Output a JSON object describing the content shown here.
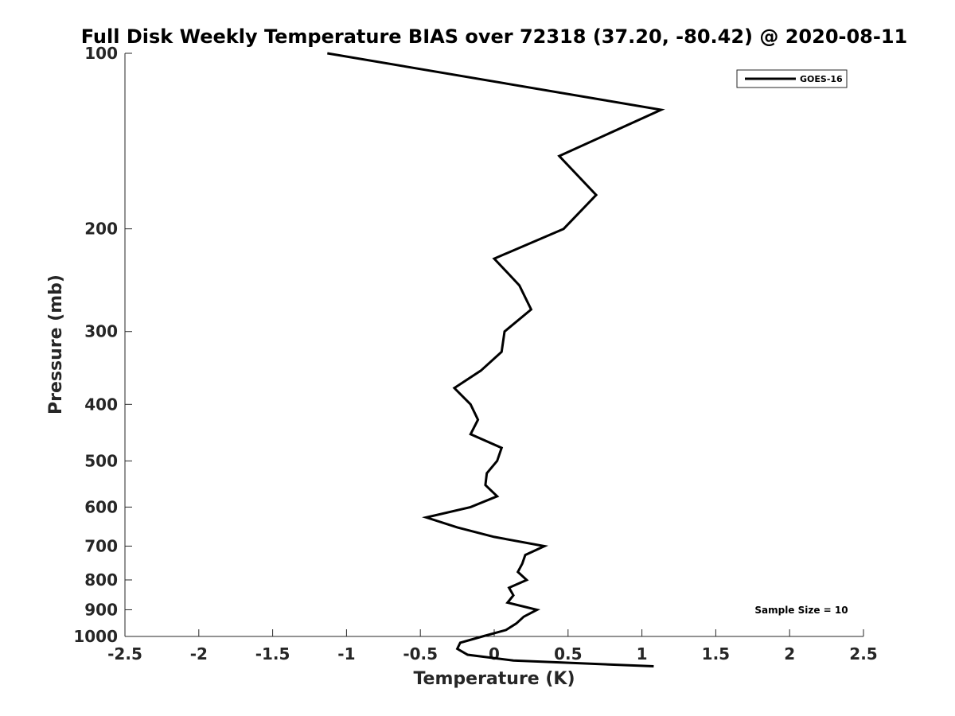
{
  "chart_data": {
    "type": "line",
    "title": "Full Disk Weekly Temperature BIAS over 72318 (37.20, -80.42) @ 2020-08-11",
    "xlabel": "Temperature (K)",
    "ylabel": "Pressure (mb)",
    "xlim": [
      -2.5,
      2.5
    ],
    "ylim": [
      100,
      1000
    ],
    "y_scale": "log",
    "y_reversed": true,
    "grid": false,
    "legend_position": "top-right",
    "x_ticks": [
      -2.5,
      -2,
      -1.5,
      -1,
      -0.5,
      0,
      0.5,
      1,
      1.5,
      2,
      2.5
    ],
    "x_tick_labels": [
      "-2.5",
      "-2",
      "-1.5",
      "-1",
      "-0.5",
      "0",
      "0.5",
      "1",
      "1.5",
      "2",
      "2.5"
    ],
    "y_ticks": [
      100,
      200,
      300,
      400,
      500,
      600,
      700,
      800,
      900,
      1000
    ],
    "y_tick_labels": [
      "100",
      "200",
      "300",
      "400",
      "500",
      "600",
      "700",
      "800",
      "900",
      "1000"
    ],
    "series": [
      {
        "name": "GOES-16",
        "color": "#000000",
        "points": [
          {
            "x": -1.13,
            "p": 100
          },
          {
            "x": 1.13,
            "p": 125
          },
          {
            "x": 0.44,
            "p": 150
          },
          {
            "x": 0.69,
            "p": 175
          },
          {
            "x": 0.47,
            "p": 200
          },
          {
            "x": 0.0,
            "p": 225
          },
          {
            "x": 0.17,
            "p": 250
          },
          {
            "x": 0.25,
            "p": 275
          },
          {
            "x": 0.07,
            "p": 300
          },
          {
            "x": 0.05,
            "p": 325
          },
          {
            "x": -0.09,
            "p": 350
          },
          {
            "x": -0.27,
            "p": 375
          },
          {
            "x": -0.16,
            "p": 400
          },
          {
            "x": -0.11,
            "p": 425
          },
          {
            "x": -0.16,
            "p": 450
          },
          {
            "x": 0.05,
            "p": 475
          },
          {
            "x": 0.02,
            "p": 500
          },
          {
            "x": -0.05,
            "p": 525
          },
          {
            "x": -0.06,
            "p": 550
          },
          {
            "x": 0.02,
            "p": 575
          },
          {
            "x": -0.16,
            "p": 600
          },
          {
            "x": -0.46,
            "p": 625
          },
          {
            "x": -0.25,
            "p": 650
          },
          {
            "x": 0.0,
            "p": 675
          },
          {
            "x": 0.34,
            "p": 700
          },
          {
            "x": 0.21,
            "p": 725
          },
          {
            "x": 0.19,
            "p": 750
          },
          {
            "x": 0.16,
            "p": 775
          },
          {
            "x": 0.22,
            "p": 800
          },
          {
            "x": 0.1,
            "p": 825
          },
          {
            "x": 0.13,
            "p": 850
          },
          {
            "x": 0.09,
            "p": 875
          },
          {
            "x": 0.29,
            "p": 900
          },
          {
            "x": 0.2,
            "p": 925
          },
          {
            "x": 0.15,
            "p": 950
          },
          {
            "x": 0.08,
            "p": 975
          },
          {
            "x": -0.08,
            "p": 1000
          },
          {
            "x": -0.23,
            "p": 1025
          },
          {
            "x": -0.25,
            "p": 1050
          },
          {
            "x": -0.18,
            "p": 1075
          },
          {
            "x": 0.13,
            "p": 1100
          },
          {
            "x": 1.08,
            "p": 1125
          }
        ]
      }
    ],
    "annotation": "Sample Size = 10"
  }
}
